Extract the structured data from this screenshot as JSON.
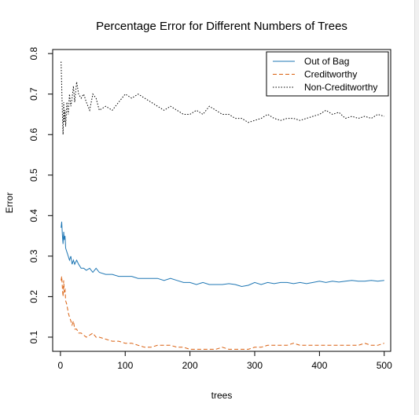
{
  "chart_data": {
    "type": "line",
    "title": "Percentage Error for Different Numbers of Trees",
    "xlabel": "trees",
    "ylabel": "Error",
    "xlim": [
      -12,
      510
    ],
    "ylim": [
      0.065,
      0.81
    ],
    "xticks": [
      0,
      100,
      200,
      300,
      400,
      500
    ],
    "yticks": [
      0.1,
      0.2,
      0.3,
      0.4,
      0.5,
      0.6,
      0.7,
      0.8
    ],
    "legend_position": "top-right",
    "series": [
      {
        "name": "Out of Bag",
        "color": "#1f77b4",
        "dash": "solid",
        "x": [
          1,
          2,
          3,
          4,
          5,
          6,
          7,
          8,
          10,
          12,
          14,
          16,
          18,
          20,
          22,
          25,
          28,
          32,
          36,
          40,
          45,
          50,
          55,
          60,
          70,
          80,
          90,
          100,
          110,
          120,
          130,
          140,
          150,
          160,
          170,
          180,
          190,
          200,
          210,
          220,
          230,
          240,
          250,
          260,
          270,
          280,
          290,
          300,
          310,
          320,
          330,
          340,
          350,
          360,
          370,
          380,
          390,
          400,
          410,
          420,
          430,
          440,
          450,
          460,
          470,
          480,
          490,
          500
        ],
        "values": [
          0.37,
          0.385,
          0.35,
          0.33,
          0.36,
          0.34,
          0.35,
          0.32,
          0.31,
          0.3,
          0.29,
          0.3,
          0.28,
          0.29,
          0.28,
          0.29,
          0.28,
          0.27,
          0.27,
          0.265,
          0.27,
          0.26,
          0.27,
          0.26,
          0.255,
          0.255,
          0.25,
          0.25,
          0.25,
          0.245,
          0.245,
          0.245,
          0.245,
          0.24,
          0.245,
          0.24,
          0.235,
          0.235,
          0.23,
          0.235,
          0.23,
          0.23,
          0.23,
          0.232,
          0.23,
          0.225,
          0.228,
          0.235,
          0.23,
          0.235,
          0.232,
          0.235,
          0.235,
          0.232,
          0.235,
          0.232,
          0.235,
          0.238,
          0.235,
          0.238,
          0.236,
          0.238,
          0.24,
          0.238,
          0.238,
          0.24,
          0.238,
          0.24
        ]
      },
      {
        "name": "Creditworthy",
        "color": "#d95f0e",
        "dash": "dashed",
        "x": [
          1,
          2,
          3,
          4,
          5,
          6,
          7,
          8,
          10,
          12,
          14,
          16,
          18,
          20,
          22,
          25,
          28,
          32,
          36,
          40,
          45,
          50,
          55,
          60,
          70,
          80,
          90,
          100,
          110,
          120,
          130,
          140,
          150,
          160,
          170,
          180,
          190,
          200,
          210,
          220,
          230,
          240,
          250,
          260,
          270,
          280,
          290,
          300,
          310,
          320,
          330,
          340,
          350,
          360,
          370,
          380,
          390,
          400,
          410,
          420,
          430,
          440,
          450,
          460,
          470,
          480,
          490,
          500
        ],
        "values": [
          0.24,
          0.25,
          0.22,
          0.2,
          0.24,
          0.21,
          0.22,
          0.19,
          0.18,
          0.16,
          0.15,
          0.14,
          0.13,
          0.14,
          0.12,
          0.12,
          0.11,
          0.11,
          0.105,
          0.1,
          0.105,
          0.11,
          0.1,
          0.1,
          0.095,
          0.09,
          0.09,
          0.085,
          0.085,
          0.08,
          0.075,
          0.075,
          0.08,
          0.08,
          0.08,
          0.075,
          0.075,
          0.07,
          0.07,
          0.07,
          0.07,
          0.07,
          0.075,
          0.07,
          0.07,
          0.07,
          0.07,
          0.075,
          0.075,
          0.08,
          0.08,
          0.08,
          0.08,
          0.085,
          0.08,
          0.08,
          0.08,
          0.08,
          0.08,
          0.08,
          0.08,
          0.08,
          0.08,
          0.08,
          0.085,
          0.08,
          0.08,
          0.085
        ]
      },
      {
        "name": "Non-Creditworthy",
        "color": "#000000",
        "dash": "dotted",
        "x": [
          1,
          2,
          3,
          4,
          5,
          6,
          7,
          8,
          10,
          12,
          14,
          16,
          18,
          20,
          22,
          25,
          28,
          32,
          36,
          40,
          45,
          50,
          55,
          60,
          70,
          80,
          90,
          100,
          110,
          120,
          130,
          140,
          150,
          160,
          170,
          180,
          190,
          200,
          210,
          220,
          230,
          240,
          250,
          260,
          270,
          280,
          290,
          300,
          310,
          320,
          330,
          340,
          350,
          360,
          370,
          380,
          390,
          400,
          410,
          420,
          430,
          440,
          450,
          460,
          470,
          480,
          490,
          500
        ],
        "values": [
          0.78,
          0.72,
          0.65,
          0.6,
          0.68,
          0.63,
          0.66,
          0.62,
          0.68,
          0.65,
          0.7,
          0.67,
          0.69,
          0.72,
          0.68,
          0.73,
          0.7,
          0.69,
          0.7,
          0.68,
          0.66,
          0.7,
          0.69,
          0.66,
          0.67,
          0.66,
          0.68,
          0.7,
          0.69,
          0.7,
          0.69,
          0.68,
          0.67,
          0.66,
          0.67,
          0.66,
          0.65,
          0.65,
          0.66,
          0.65,
          0.67,
          0.66,
          0.65,
          0.65,
          0.64,
          0.64,
          0.63,
          0.635,
          0.64,
          0.65,
          0.64,
          0.635,
          0.64,
          0.64,
          0.635,
          0.64,
          0.645,
          0.65,
          0.66,
          0.65,
          0.655,
          0.64,
          0.645,
          0.64,
          0.645,
          0.64,
          0.65,
          0.645
        ]
      }
    ]
  }
}
